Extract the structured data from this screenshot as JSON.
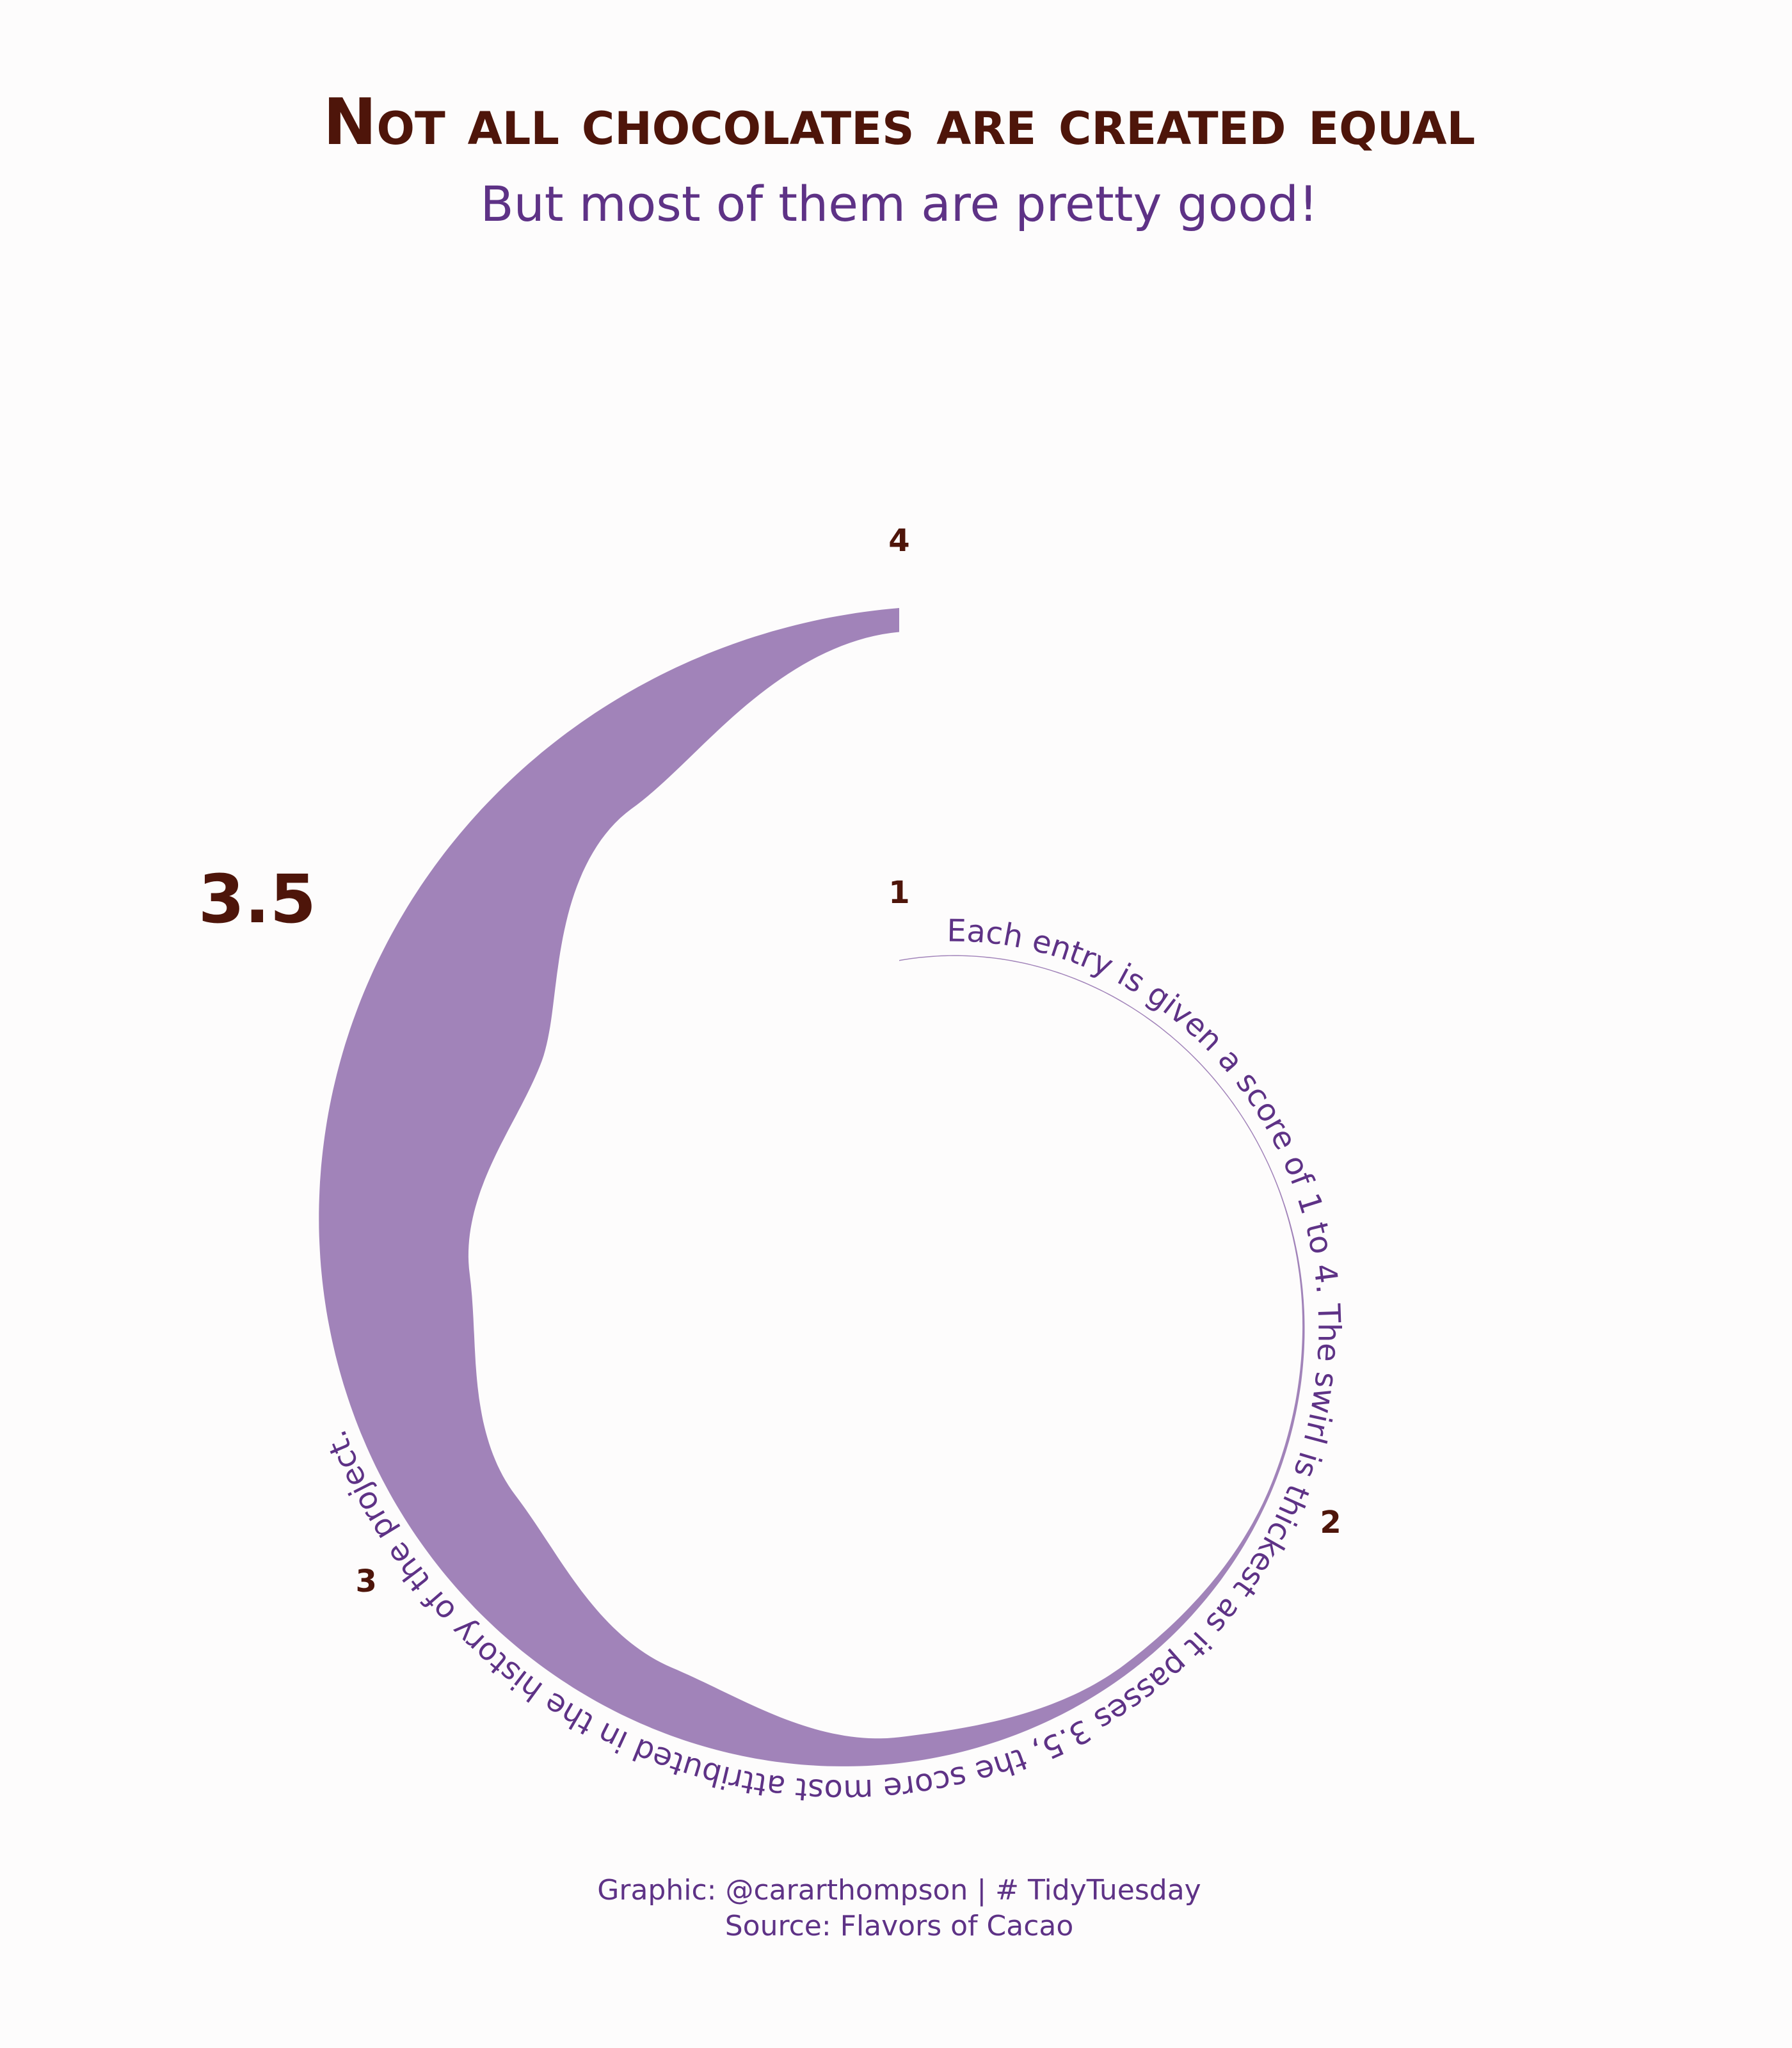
{
  "title": "Not all chocolates are created equal",
  "subtitle": "But most of them are pretty good!",
  "caption": {
    "line1": "Graphic: @cararthompson | # TidyTuesday",
    "line2": "Source: Flavors of Cacao"
  },
  "colors": {
    "background": "#fdfcfc",
    "swirl": "#a183b9",
    "title": "#4e150a",
    "text": "#5e3286"
  },
  "chart_data": {
    "type": "area",
    "coordinate_system": "spiral",
    "x_range": [
      1,
      4
    ],
    "tick_labels": [
      "1",
      "2",
      "3",
      "4"
    ],
    "peak_label": "3.5",
    "annotation": "Each entry is given a score of 1 to 4. The swirl is thickest as it passes 3.5, the score most attributed in the history of the project.",
    "x": [
      1.0,
      1.5,
      2.0,
      2.25,
      2.5,
      2.75,
      3.0,
      3.25,
      3.5,
      3.75,
      4.0
    ],
    "values": [
      1,
      5,
      30,
      90,
      260,
      640,
      1050,
      1480,
      1920,
      1000,
      240
    ]
  }
}
